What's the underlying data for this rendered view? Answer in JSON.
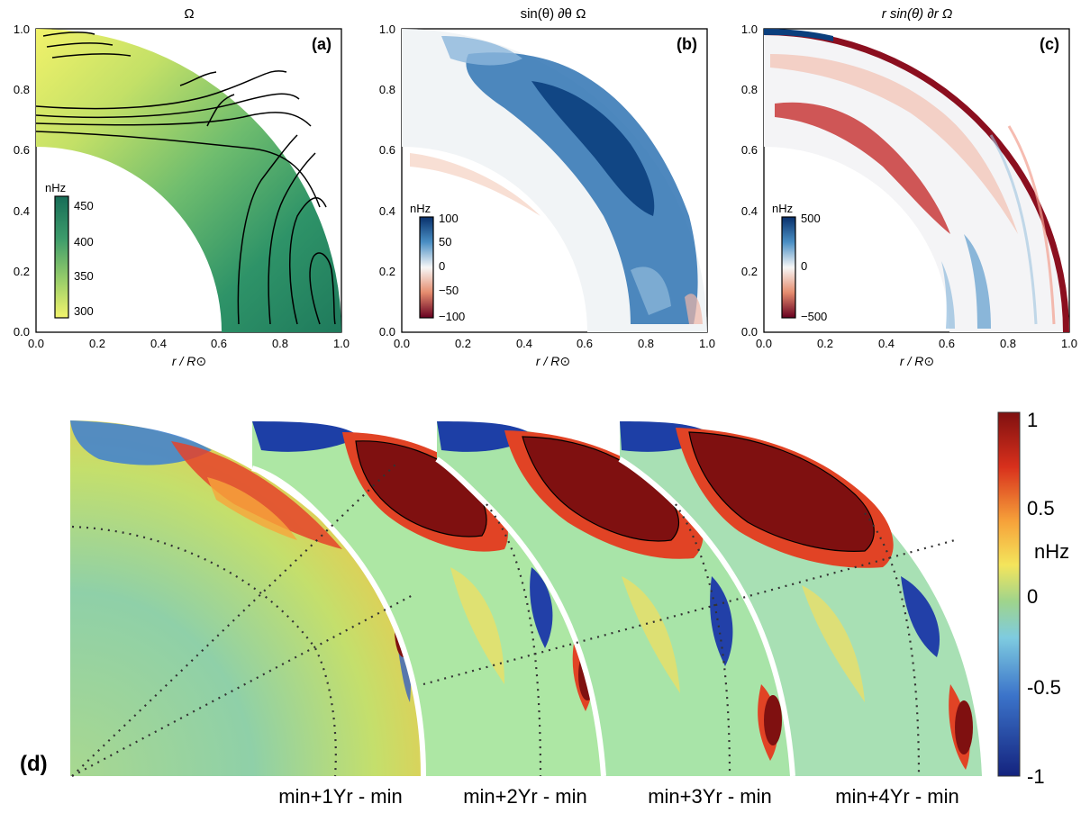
{
  "figure": {
    "panels": [
      {
        "letter": "(a)",
        "title": "Ω",
        "xlabel": "r / R⊙",
        "x_ticks": [
          "0.0",
          "0.2",
          "0.4",
          "0.6",
          "0.8",
          "1.0"
        ],
        "y_ticks": [
          "0.0",
          "0.2",
          "0.4",
          "0.6",
          "0.8",
          "1.0"
        ],
        "colorbar": {
          "unit": "nHz",
          "ticks": [
            "450",
            "400",
            "350",
            "300"
          ]
        }
      },
      {
        "letter": "(b)",
        "title": "sin(θ) ∂θ Ω",
        "xlabel": "r / R⊙",
        "x_ticks": [
          "0.0",
          "0.2",
          "0.4",
          "0.6",
          "0.8",
          "1.0"
        ],
        "y_ticks": [
          "0.0",
          "0.2",
          "0.4",
          "0.6",
          "0.8",
          "1.0"
        ],
        "colorbar": {
          "unit": "nHz",
          "ticks": [
            "100",
            "50",
            "0",
            "−50",
            "−100"
          ]
        }
      },
      {
        "letter": "(c)",
        "title": "r sin(θ) ∂r Ω",
        "xlabel": "r / R⊙",
        "x_ticks": [
          "0.0",
          "0.2",
          "0.4",
          "0.6",
          "0.8",
          "1.0"
        ],
        "y_ticks": [
          "0.0",
          "0.2",
          "0.4",
          "0.6",
          "0.8",
          "1.0"
        ],
        "colorbar": {
          "unit": "nHz",
          "ticks": [
            "500",
            "0",
            "−500"
          ]
        }
      }
    ],
    "panel_d": {
      "letter": "(d)",
      "labels": [
        "min+1Yr - min",
        "min+2Yr - min",
        "min+3Yr - min",
        "min+4Yr - min"
      ],
      "colorbar": {
        "unit": "nHz",
        "ticks": [
          "1",
          "0.5",
          "0",
          "-0.5",
          "-1"
        ]
      }
    },
    "colors": {
      "viridis_dark": "#1f7a5c",
      "viridis_light": "#f1f26a",
      "blue": "#08306b",
      "red": "#67001f",
      "jet_red": "#8b1a10",
      "jet_blue": "#1c2f8f",
      "jet_green": "#9fd48c"
    }
  }
}
